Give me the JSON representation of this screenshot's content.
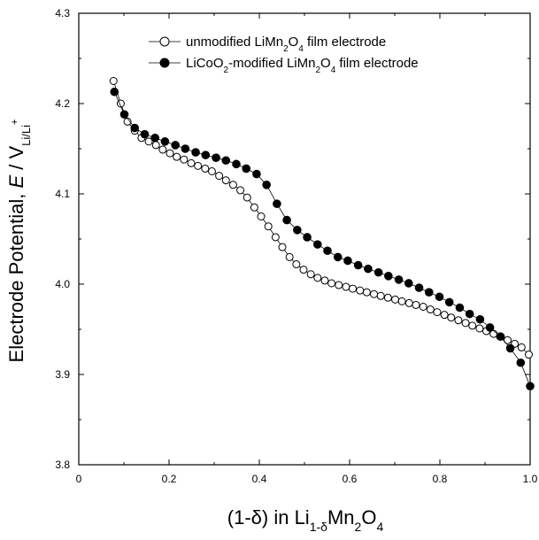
{
  "chart_data": {
    "type": "scatter",
    "title": "",
    "xlabel": "(1-δ) in Li1-δMn2O4",
    "ylabel": "Electrode Potential, E / VLi/Li+",
    "xlim": [
      0,
      1.0
    ],
    "ylim": [
      3.8,
      4.3
    ],
    "x_ticks": [
      0,
      0.2,
      0.4,
      0.6,
      0.8,
      1.0
    ],
    "x_tick_labels": [
      "0",
      "0.2",
      "0.4",
      "0.6",
      "0.8",
      "1.0"
    ],
    "y_ticks": [
      3.8,
      3.9,
      4.0,
      4.1,
      4.2,
      4.3
    ],
    "y_tick_labels": [
      "3.8",
      "3.9",
      "4.0",
      "4.1",
      "4.2",
      "4.3"
    ],
    "grid": false,
    "legend_position": "top-right",
    "series": [
      {
        "name": "unmodified LiMn2O4 film electrode",
        "marker": "open-circle",
        "color": "#000000",
        "x": [
          0.077,
          0.093,
          0.108,
          0.124,
          0.139,
          0.155,
          0.171,
          0.186,
          0.202,
          0.217,
          0.233,
          0.249,
          0.264,
          0.28,
          0.295,
          0.311,
          0.326,
          0.342,
          0.358,
          0.373,
          0.389,
          0.404,
          0.42,
          0.436,
          0.451,
          0.467,
          0.482,
          0.498,
          0.514,
          0.529,
          0.545,
          0.56,
          0.576,
          0.592,
          0.607,
          0.623,
          0.638,
          0.654,
          0.669,
          0.685,
          0.701,
          0.716,
          0.732,
          0.747,
          0.763,
          0.779,
          0.794,
          0.81,
          0.825,
          0.841,
          0.857,
          0.872,
          0.888,
          0.903,
          0.919,
          0.935,
          0.95,
          0.966,
          0.981,
          0.997
        ],
        "y": [
          4.225,
          4.2,
          4.18,
          4.17,
          4.162,
          4.158,
          4.154,
          4.149,
          4.145,
          4.141,
          4.138,
          4.134,
          4.131,
          4.128,
          4.125,
          4.12,
          4.115,
          4.11,
          4.104,
          4.096,
          4.085,
          4.075,
          4.064,
          4.052,
          4.041,
          4.03,
          4.022,
          4.016,
          4.011,
          4.007,
          4.004,
          4.001,
          3.999,
          3.997,
          3.995,
          3.993,
          3.991,
          3.989,
          3.987,
          3.985,
          3.983,
          3.981,
          3.979,
          3.977,
          3.975,
          3.972,
          3.969,
          3.966,
          3.963,
          3.96,
          3.957,
          3.954,
          3.951,
          3.948,
          3.945,
          3.942,
          3.938,
          3.934,
          3.93,
          3.922
        ]
      },
      {
        "name": "LiCoO2-modified LiMn2O4 film electrode",
        "marker": "filled-circle",
        "color": "#000000",
        "x": [
          0.079,
          0.101,
          0.124,
          0.146,
          0.169,
          0.191,
          0.214,
          0.236,
          0.259,
          0.281,
          0.304,
          0.326,
          0.349,
          0.371,
          0.394,
          0.416,
          0.439,
          0.461,
          0.484,
          0.506,
          0.529,
          0.551,
          0.574,
          0.596,
          0.619,
          0.641,
          0.664,
          0.686,
          0.709,
          0.731,
          0.754,
          0.776,
          0.799,
          0.821,
          0.844,
          0.866,
          0.889,
          0.911,
          0.934,
          0.956,
          0.979,
          1.0
        ],
        "y": [
          4.213,
          4.188,
          4.173,
          4.166,
          4.162,
          4.158,
          4.154,
          4.15,
          4.146,
          4.143,
          4.14,
          4.137,
          4.133,
          4.128,
          4.122,
          4.11,
          4.089,
          4.071,
          4.06,
          4.052,
          4.044,
          4.037,
          4.03,
          4.026,
          4.021,
          4.017,
          4.013,
          4.009,
          4.005,
          4.001,
          3.996,
          3.991,
          3.986,
          3.98,
          3.974,
          3.967,
          3.961,
          3.952,
          3.942,
          3.929,
          3.913,
          3.887
        ]
      }
    ]
  }
}
